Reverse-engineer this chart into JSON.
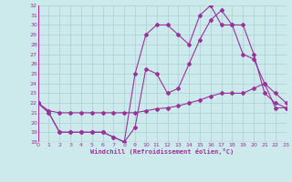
{
  "bg_color": "#cce9ec",
  "grid_color": "#aacfd4",
  "line_color": "#993399",
  "marker": "D",
  "marker_size": 2,
  "xlabel": "Windchill (Refroidissement éolien,°C)",
  "xlim": [
    0,
    23
  ],
  "ylim": [
    18,
    32
  ],
  "xticks": [
    0,
    1,
    2,
    3,
    4,
    5,
    6,
    7,
    8,
    9,
    10,
    11,
    12,
    13,
    14,
    15,
    16,
    17,
    18,
    19,
    20,
    21,
    22,
    23
  ],
  "yticks": [
    18,
    19,
    20,
    21,
    22,
    23,
    24,
    25,
    26,
    27,
    28,
    29,
    30,
    31,
    32
  ],
  "x": [
    0,
    1,
    2,
    3,
    4,
    5,
    6,
    7,
    8,
    9,
    10,
    11,
    12,
    13,
    14,
    15,
    16,
    17,
    18,
    19,
    20,
    21,
    22,
    23
  ],
  "series1": [
    22,
    21,
    19,
    19,
    19,
    19,
    19,
    18.5,
    18,
    25,
    29,
    30,
    30,
    29,
    28,
    31,
    32,
    30,
    30,
    30,
    27,
    23,
    22,
    21.5
  ],
  "series2": [
    22,
    21,
    19,
    19,
    19,
    19,
    19,
    18.5,
    18,
    19.5,
    25.5,
    25,
    23,
    23.5,
    26,
    28.5,
    30.5,
    31.5,
    30,
    27,
    26.5,
    24,
    23,
    22
  ],
  "series3": [
    22,
    21.2,
    21,
    21,
    21,
    21,
    21,
    21,
    21,
    21,
    21.2,
    21.4,
    21.5,
    21.7,
    22,
    22.3,
    22.7,
    23,
    23,
    23,
    23.5,
    24,
    21.5,
    21.5
  ]
}
